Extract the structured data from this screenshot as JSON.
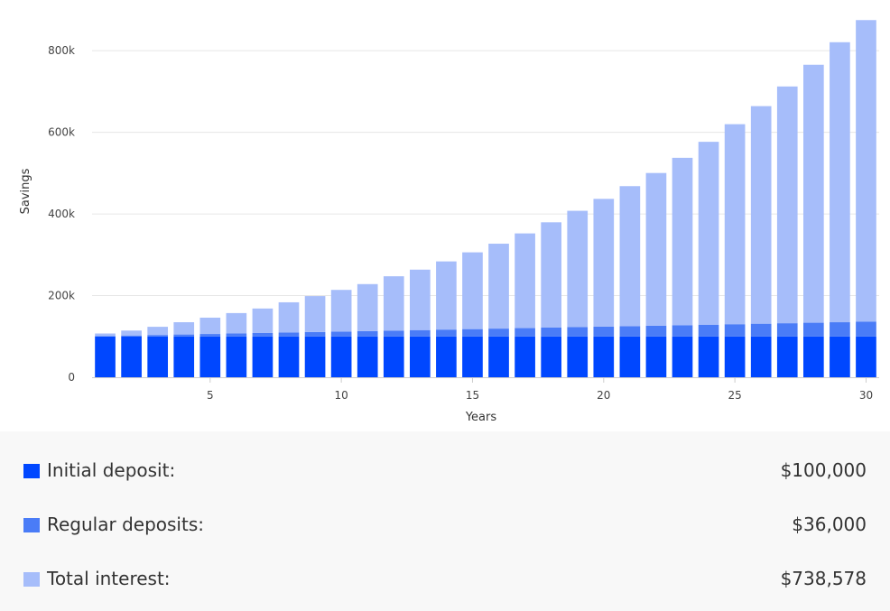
{
  "chart_data": {
    "type": "bar",
    "stacked": true,
    "xlabel": "Years",
    "ylabel": "Savings",
    "x": [
      1,
      2,
      3,
      4,
      5,
      6,
      7,
      8,
      9,
      10,
      11,
      12,
      13,
      14,
      15,
      16,
      17,
      18,
      19,
      20,
      21,
      22,
      23,
      24,
      25,
      26,
      27,
      28,
      29,
      30
    ],
    "x_ticks": [
      5,
      10,
      15,
      20,
      25,
      30
    ],
    "x_tick_labels": [
      "5",
      "10",
      "15",
      "20",
      "25",
      "30"
    ],
    "ylim": [
      0,
      880000
    ],
    "y_ticks": [
      0,
      200000,
      400000,
      600000,
      800000
    ],
    "y_tick_labels": [
      "0",
      "200k",
      "400k",
      "600k",
      "800k"
    ],
    "grid": true,
    "series": [
      {
        "key": "initial",
        "color": "#0047ff",
        "values": [
          100000,
          100000,
          100000,
          100000,
          100000,
          100000,
          100000,
          100000,
          100000,
          100000,
          100000,
          100000,
          100000,
          100000,
          100000,
          100000,
          100000,
          100000,
          100000,
          100000,
          100000,
          100000,
          100000,
          100000,
          100000,
          100000,
          100000,
          100000,
          100000,
          100000
        ]
      },
      {
        "key": "regular",
        "color": "#4a7cf7",
        "values": [
          1200,
          2400,
          3600,
          4800,
          6000,
          7200,
          8400,
          9600,
          10800,
          12000,
          13200,
          14400,
          15600,
          16800,
          18000,
          19200,
          20400,
          21600,
          22800,
          24000,
          25200,
          26400,
          27600,
          28800,
          30000,
          31200,
          32400,
          33600,
          34800,
          36000
        ]
      },
      {
        "key": "interest",
        "color": "#a6bdfa",
        "values": [
          6000,
          12000,
          20000,
          30000,
          40000,
          50000,
          60000,
          74000,
          88000,
          102000,
          115000,
          133000,
          148000,
          167000,
          188000,
          208000,
          232000,
          258000,
          285000,
          313000,
          343000,
          374000,
          410000,
          448000,
          490000,
          533000,
          580000,
          632000,
          686000,
          739000
        ]
      }
    ]
  },
  "summary": {
    "rows": [
      {
        "label": "Initial deposit:",
        "value": "$100,000",
        "color": "#0047ff"
      },
      {
        "label": "Regular deposits:",
        "value": "$36,000",
        "color": "#4a7cf7"
      },
      {
        "label": "Total interest:",
        "value": "$738,578",
        "color": "#a6bdfa"
      }
    ]
  }
}
